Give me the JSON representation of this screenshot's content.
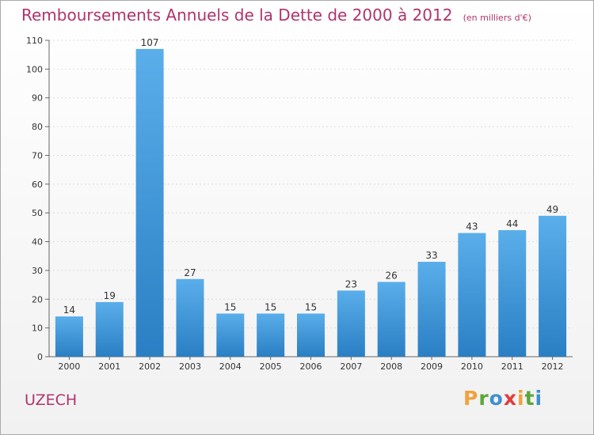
{
  "chart_data": {
    "type": "bar",
    "title": "Remboursements Annuels de la Dette de 2000 à 2012",
    "subtitle": "(en milliers d'€)",
    "categories": [
      "2000",
      "2001",
      "2002",
      "2003",
      "2004",
      "2005",
      "2006",
      "2007",
      "2008",
      "2009",
      "2010",
      "2011",
      "2012"
    ],
    "values": [
      14,
      19,
      107,
      27,
      15,
      15,
      15,
      23,
      26,
      33,
      43,
      44,
      49
    ],
    "ylim": [
      0,
      110
    ],
    "yticks": [
      0,
      10,
      20,
      30,
      40,
      50,
      60,
      70,
      80,
      90,
      100,
      110
    ],
    "grid": true,
    "bar_color": "#3a95db"
  },
  "commune": "UZECH",
  "logo": {
    "text": "Proxiti",
    "letters": [
      {
        "ch": "P",
        "color": "#f0a23b"
      },
      {
        "ch": "r",
        "color": "#5aa63c"
      },
      {
        "ch": "o",
        "color": "#3e8fcf"
      },
      {
        "ch": "x",
        "color": "#e23c3c"
      },
      {
        "ch": "i",
        "color": "#f0a23b"
      },
      {
        "ch": "t",
        "color": "#5aa63c"
      },
      {
        "ch": "i",
        "color": "#3e8fcf"
      }
    ]
  }
}
